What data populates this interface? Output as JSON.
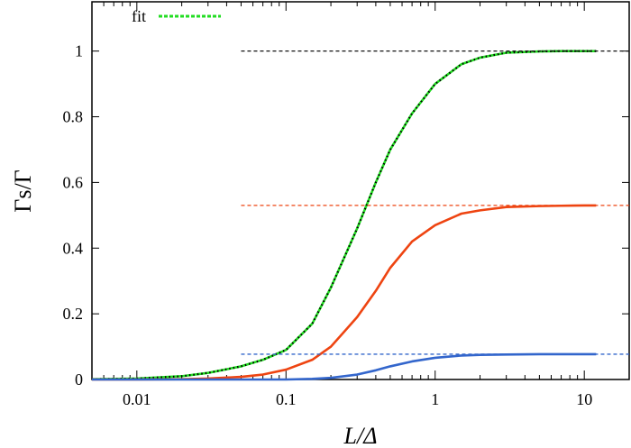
{
  "chart_data": {
    "type": "line",
    "xscale": "log",
    "xlim": [
      0.005,
      20
    ],
    "ylim": [
      0,
      1.15
    ],
    "xlabel": "L/Δ",
    "ylabel": "Γs/Γ",
    "xticks": [
      0.01,
      0.1,
      1,
      10
    ],
    "xtick_labels": [
      "0.01",
      "0.1",
      "1",
      "10"
    ],
    "yticks": [
      0,
      0.2,
      0.4,
      0.6,
      0.8,
      1
    ],
    "ytick_labels": [
      "0",
      "0.2",
      "0.4",
      "0.6",
      "0.8",
      "1"
    ],
    "legend": {
      "position": "top-left",
      "entries": [
        "fit"
      ]
    },
    "series": [
      {
        "color": "#22dd22",
        "style": "solid",
        "x": [
          0.005,
          0.01,
          0.02,
          0.03,
          0.05,
          0.07,
          0.1,
          0.15,
          0.2,
          0.3,
          0.4,
          0.5,
          0.7,
          1,
          1.5,
          2,
          3,
          5,
          7,
          10,
          12
        ],
        "values": [
          0.001,
          0.003,
          0.01,
          0.02,
          0.04,
          0.06,
          0.09,
          0.17,
          0.28,
          0.46,
          0.6,
          0.7,
          0.81,
          0.9,
          0.96,
          0.98,
          0.995,
          0.999,
          1.0,
          1.0,
          1.0
        ]
      },
      {
        "name": "fit",
        "color": "#00cc00",
        "style": "dotted",
        "x": [
          0.005,
          0.01,
          0.02,
          0.03,
          0.05,
          0.07,
          0.1,
          0.15,
          0.2,
          0.3,
          0.4,
          0.5,
          0.7,
          1,
          1.5,
          2,
          3,
          5,
          7,
          10,
          12
        ],
        "values": [
          0.001,
          0.003,
          0.01,
          0.02,
          0.04,
          0.06,
          0.09,
          0.17,
          0.28,
          0.46,
          0.6,
          0.7,
          0.81,
          0.9,
          0.96,
          0.98,
          0.995,
          0.999,
          1.0,
          1.0,
          1.0
        ]
      },
      {
        "color": "#ee4411",
        "style": "solid",
        "x": [
          0.005,
          0.01,
          0.02,
          0.03,
          0.05,
          0.07,
          0.1,
          0.15,
          0.2,
          0.3,
          0.4,
          0.5,
          0.7,
          1,
          1.5,
          2,
          3,
          5,
          7,
          10,
          12
        ],
        "values": [
          0.0,
          0.0,
          0.001,
          0.003,
          0.008,
          0.015,
          0.03,
          0.06,
          0.1,
          0.19,
          0.27,
          0.34,
          0.42,
          0.47,
          0.505,
          0.515,
          0.525,
          0.528,
          0.529,
          0.53,
          0.53
        ]
      },
      {
        "color": "#3366cc",
        "style": "solid",
        "x": [
          0.005,
          0.01,
          0.02,
          0.05,
          0.1,
          0.15,
          0.2,
          0.3,
          0.4,
          0.5,
          0.7,
          1,
          1.5,
          2,
          3,
          5,
          7,
          10,
          12
        ],
        "values": [
          0.0,
          0.0,
          0.0,
          0.0,
          0.0,
          0.002,
          0.005,
          0.015,
          0.028,
          0.04,
          0.055,
          0.066,
          0.073,
          0.075,
          0.076,
          0.077,
          0.077,
          0.077,
          0.077
        ]
      },
      {
        "color": "#111111",
        "style": "dashed",
        "x": [
          0.05,
          20
        ],
        "values": [
          1.0,
          1.0
        ]
      },
      {
        "color": "#ee4411",
        "style": "dashed",
        "x": [
          0.05,
          20
        ],
        "values": [
          0.53,
          0.53
        ]
      },
      {
        "color": "#3366cc",
        "style": "dashed",
        "x": [
          0.05,
          20
        ],
        "values": [
          0.077,
          0.077
        ]
      }
    ]
  }
}
